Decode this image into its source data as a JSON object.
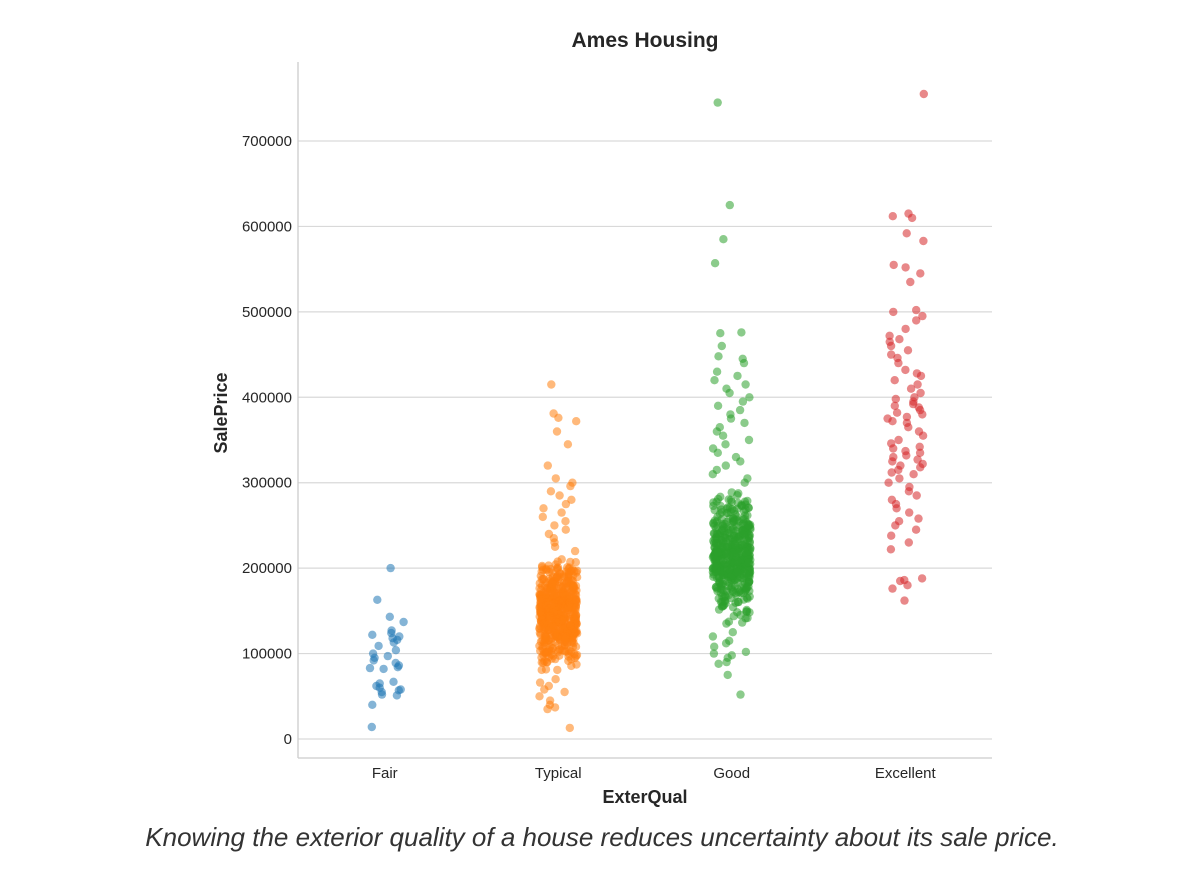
{
  "chart_data": {
    "type": "scatter",
    "subtype": "strip",
    "title": "Ames Housing",
    "xlabel": "ExterQual",
    "ylabel": "SalePrice",
    "categories": [
      "Fair",
      "Typical",
      "Good",
      "Excellent"
    ],
    "yticks": [
      0,
      100000,
      200000,
      300000,
      400000,
      500000,
      600000,
      700000
    ],
    "ylim": [
      -25000,
      790000
    ],
    "grid": true,
    "series": [
      {
        "category": "Fair",
        "color": "#1f77b4",
        "values": [
          200000,
          163000,
          143000,
          137000,
          127000,
          124000,
          122000,
          120000,
          118000,
          116000,
          113000,
          109000,
          104000,
          100000,
          97000,
          95000,
          92000,
          89000,
          86000,
          84000,
          83000,
          82000,
          67000,
          65000,
          62000,
          60000,
          58000,
          57000,
          55000,
          52000,
          51000,
          40000,
          14000
        ]
      },
      {
        "category": "Typical",
        "color": "#ff7f0e",
        "values": [
          415000,
          381000,
          376000,
          372000,
          360000,
          345000,
          320000,
          305000,
          300000,
          296000,
          290000,
          285000,
          280000,
          275000,
          270000,
          265000,
          260000,
          255000,
          250000,
          245000,
          240000,
          235000,
          230000,
          225000,
          220000,
          70000,
          66000,
          62000,
          58000,
          55000,
          50000,
          45000,
          40000,
          37000,
          35000,
          13000
        ],
        "dense_range": [
          80000,
          215000
        ],
        "dense_count": 520
      },
      {
        "category": "Good",
        "color": "#2ca02c",
        "values": [
          745000,
          625000,
          585000,
          557000,
          476000,
          475000,
          460000,
          448000,
          445000,
          440000,
          430000,
          425000,
          420000,
          415000,
          410000,
          405000,
          400000,
          395000,
          390000,
          385000,
          380000,
          375000,
          370000,
          365000,
          360000,
          355000,
          350000,
          345000,
          340000,
          335000,
          330000,
          325000,
          320000,
          315000,
          310000,
          305000,
          300000,
          125000,
          120000,
          115000,
          112000,
          108000,
          102000,
          100000,
          98000,
          95000,
          90000,
          88000,
          75000,
          52000
        ],
        "dense_range": [
          130000,
          295000
        ],
        "dense_count": 470
      },
      {
        "category": "Excellent",
        "color": "#d62728",
        "values": [
          755000,
          615000,
          612000,
          610000,
          592000,
          583000,
          555000,
          552000,
          545000,
          535000,
          502000,
          500000,
          495000,
          490000,
          480000,
          472000,
          468000,
          465000,
          460000,
          455000,
          450000,
          446000,
          440000,
          432000,
          428000,
          425000,
          420000,
          415000,
          410000,
          405000,
          400000,
          398000,
          395000,
          392000,
          390000,
          388000,
          385000,
          382000,
          380000,
          377000,
          375000,
          372000,
          370000,
          365000,
          360000,
          355000,
          350000,
          346000,
          342000,
          340000,
          337000,
          335000,
          332000,
          330000,
          327000,
          325000,
          322000,
          320000,
          318000,
          315000,
          312000,
          310000,
          305000,
          300000,
          295000,
          290000,
          285000,
          280000,
          275000,
          270000,
          265000,
          258000,
          255000,
          250000,
          245000,
          238000,
          230000,
          222000,
          188000,
          186000,
          185000,
          180000,
          176000,
          162000
        ]
      }
    ]
  },
  "caption": "Knowing the exterior quality of a house reduces uncertainty about its sale price."
}
